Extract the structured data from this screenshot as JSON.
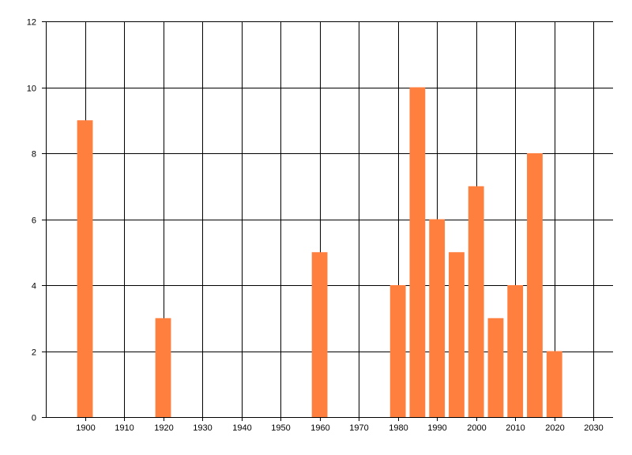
{
  "chart_data": {
    "type": "bar",
    "x": [
      1900,
      1920,
      1960,
      1980,
      1985,
      1990,
      1995,
      2000,
      2005,
      2010,
      2015,
      2020
    ],
    "values": [
      9,
      3,
      5,
      4,
      10,
      6,
      5,
      7,
      3,
      4,
      8,
      2
    ],
    "xlim": [
      1890,
      2035
    ],
    "ylim": [
      0,
      12
    ],
    "x_ticks": [
      1900,
      1910,
      1920,
      1930,
      1940,
      1950,
      1960,
      1970,
      1980,
      1990,
      2000,
      2010,
      2020,
      2030
    ],
    "y_ticks": [
      0,
      2,
      4,
      6,
      8,
      10,
      12
    ],
    "bar_width_years": 4,
    "grid": true,
    "bar_color": "#ff7f3f",
    "grid_color": "#000000",
    "title": "",
    "xlabel": "",
    "ylabel": ""
  }
}
